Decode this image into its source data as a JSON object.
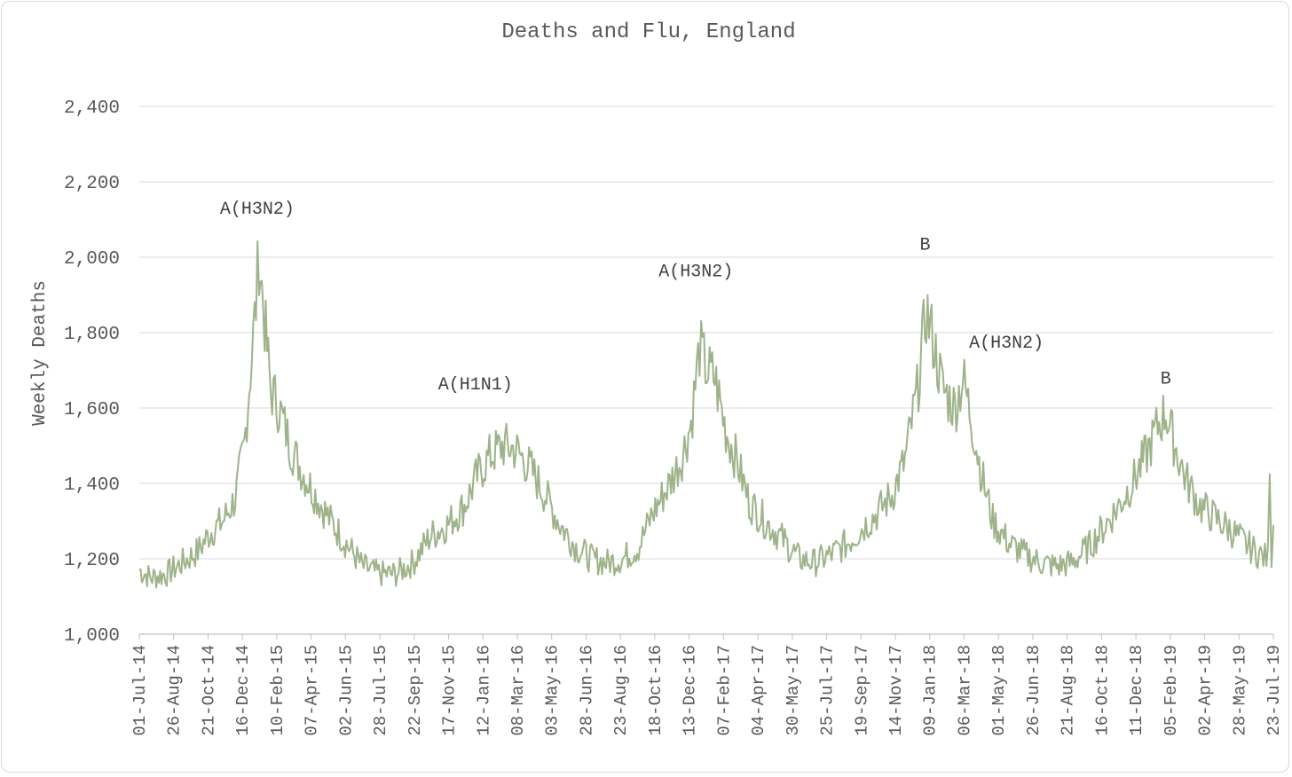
{
  "chart_data": {
    "type": "line",
    "title": "Deaths and Flu, England",
    "xlabel": "",
    "ylabel": "Weekly Deaths",
    "ylim": [
      1000,
      2400
    ],
    "grid": true,
    "line_color": "#9eb38a",
    "y_ticks": [
      "1,000",
      "1,200",
      "1,400",
      "1,600",
      "1,800",
      "2,000",
      "2,200",
      "2,400"
    ],
    "y_tick_values": [
      1000,
      1200,
      1400,
      1600,
      1800,
      2000,
      2200,
      2400
    ],
    "x_ticks": [
      "01-Jul-14",
      "26-Aug-14",
      "21-Oct-14",
      "16-Dec-14",
      "10-Feb-15",
      "07-Apr-15",
      "02-Jun-15",
      "28-Jul-15",
      "22-Sep-15",
      "17-Nov-15",
      "12-Jan-16",
      "08-Mar-16",
      "03-May-16",
      "28-Jun-16",
      "23-Aug-16",
      "18-Oct-16",
      "13-Dec-16",
      "07-Feb-17",
      "04-Apr-17",
      "30-May-17",
      "25-Jul-17",
      "19-Sep-17",
      "14-Nov-17",
      "09-Jan-18",
      "06-Mar-18",
      "01-May-18",
      "26-Jun-18",
      "21-Aug-18",
      "16-Oct-18",
      "11-Dec-18",
      "05-Feb-19",
      "02-Apr-19",
      "28-May-19",
      "23-Jul-19"
    ],
    "x_start": "2014-07-01",
    "x_end": "2019-07-31",
    "series": [
      {
        "points": [
          [
            "2014-07-01",
            1170
          ],
          [
            "2014-07-20",
            1150
          ],
          [
            "2014-08-15",
            1160
          ],
          [
            "2014-09-10",
            1190
          ],
          [
            "2014-10-05",
            1220
          ],
          [
            "2014-10-25",
            1270
          ],
          [
            "2014-11-15",
            1300
          ],
          [
            "2014-12-05",
            1360
          ],
          [
            "2014-12-20",
            1500
          ],
          [
            "2014-12-30",
            1700
          ],
          [
            "2015-01-08",
            1880
          ],
          [
            "2015-01-13",
            2010
          ],
          [
            "2015-01-22",
            1830
          ],
          [
            "2015-02-01",
            1650
          ],
          [
            "2015-02-15",
            1600
          ],
          [
            "2015-03-05",
            1500
          ],
          [
            "2015-03-25",
            1430
          ],
          [
            "2015-04-15",
            1370
          ],
          [
            "2015-05-10",
            1300
          ],
          [
            "2015-06-05",
            1240
          ],
          [
            "2015-07-01",
            1180
          ],
          [
            "2015-07-28",
            1160
          ],
          [
            "2015-08-25",
            1160
          ],
          [
            "2015-09-22",
            1190
          ],
          [
            "2015-10-20",
            1260
          ],
          [
            "2015-11-17",
            1290
          ],
          [
            "2015-12-15",
            1340
          ],
          [
            "2016-01-05",
            1420
          ],
          [
            "2016-01-25",
            1470
          ],
          [
            "2016-02-15",
            1500
          ],
          [
            "2016-03-08",
            1490
          ],
          [
            "2016-04-01",
            1440
          ],
          [
            "2016-04-25",
            1370
          ],
          [
            "2016-05-20",
            1290
          ],
          [
            "2016-06-15",
            1230
          ],
          [
            "2016-07-10",
            1200
          ],
          [
            "2016-08-05",
            1190
          ],
          [
            "2016-08-30",
            1200
          ],
          [
            "2016-09-25",
            1230
          ],
          [
            "2016-10-18",
            1320
          ],
          [
            "2016-11-15",
            1400
          ],
          [
            "2016-12-05",
            1470
          ],
          [
            "2016-12-20",
            1560
          ],
          [
            "2017-01-03",
            1760
          ],
          [
            "2017-01-15",
            1700
          ],
          [
            "2017-01-28",
            1680
          ],
          [
            "2017-02-15",
            1540
          ],
          [
            "2017-03-05",
            1460
          ],
          [
            "2017-03-25",
            1350
          ],
          [
            "2017-04-20",
            1300
          ],
          [
            "2017-05-20",
            1250
          ],
          [
            "2017-06-15",
            1200
          ],
          [
            "2017-07-10",
            1190
          ],
          [
            "2017-08-05",
            1210
          ],
          [
            "2017-09-01",
            1240
          ],
          [
            "2017-09-25",
            1280
          ],
          [
            "2017-10-20",
            1320
          ],
          [
            "2017-11-14",
            1370
          ],
          [
            "2017-12-05",
            1460
          ],
          [
            "2017-12-25",
            1640
          ],
          [
            "2018-01-09",
            1860
          ],
          [
            "2018-01-20",
            1780
          ],
          [
            "2018-02-05",
            1650
          ],
          [
            "2018-02-25",
            1600
          ],
          [
            "2018-03-10",
            1680
          ],
          [
            "2018-03-25",
            1560
          ],
          [
            "2018-04-10",
            1420
          ],
          [
            "2018-04-28",
            1300
          ],
          [
            "2018-05-25",
            1240
          ],
          [
            "2018-06-20",
            1210
          ],
          [
            "2018-07-15",
            1190
          ],
          [
            "2018-08-10",
            1180
          ],
          [
            "2018-09-05",
            1190
          ],
          [
            "2018-10-01",
            1230
          ],
          [
            "2018-10-25",
            1280
          ],
          [
            "2018-11-20",
            1340
          ],
          [
            "2018-12-15",
            1410
          ],
          [
            "2019-01-05",
            1480
          ],
          [
            "2019-01-25",
            1560
          ],
          [
            "2019-02-05",
            1590
          ],
          [
            "2019-02-20",
            1500
          ],
          [
            "2019-03-10",
            1410
          ],
          [
            "2019-04-02",
            1340
          ],
          [
            "2019-04-25",
            1310
          ],
          [
            "2019-05-20",
            1280
          ],
          [
            "2019-06-15",
            1240
          ],
          [
            "2019-07-10",
            1210
          ],
          [
            "2019-07-22",
            1200
          ],
          [
            "2019-07-25",
            1480
          ],
          [
            "2019-07-28",
            1200
          ],
          [
            "2019-07-31",
            1290
          ]
        ]
      }
    ],
    "annotations": [
      {
        "text": "A(H3N2)",
        "date": "2015-01-10",
        "y": 2115
      },
      {
        "text": "A(H1N1)",
        "date": "2016-01-02",
        "y": 1650
      },
      {
        "text": "A(H3N2)",
        "date": "2016-12-28",
        "y": 1950
      },
      {
        "text": "B",
        "date": "2018-01-07",
        "y": 2020
      },
      {
        "text": "A(H3N2)",
        "date": "2018-05-20",
        "y": 1760
      },
      {
        "text": "B",
        "date": "2019-02-05",
        "y": 1665
      }
    ]
  }
}
